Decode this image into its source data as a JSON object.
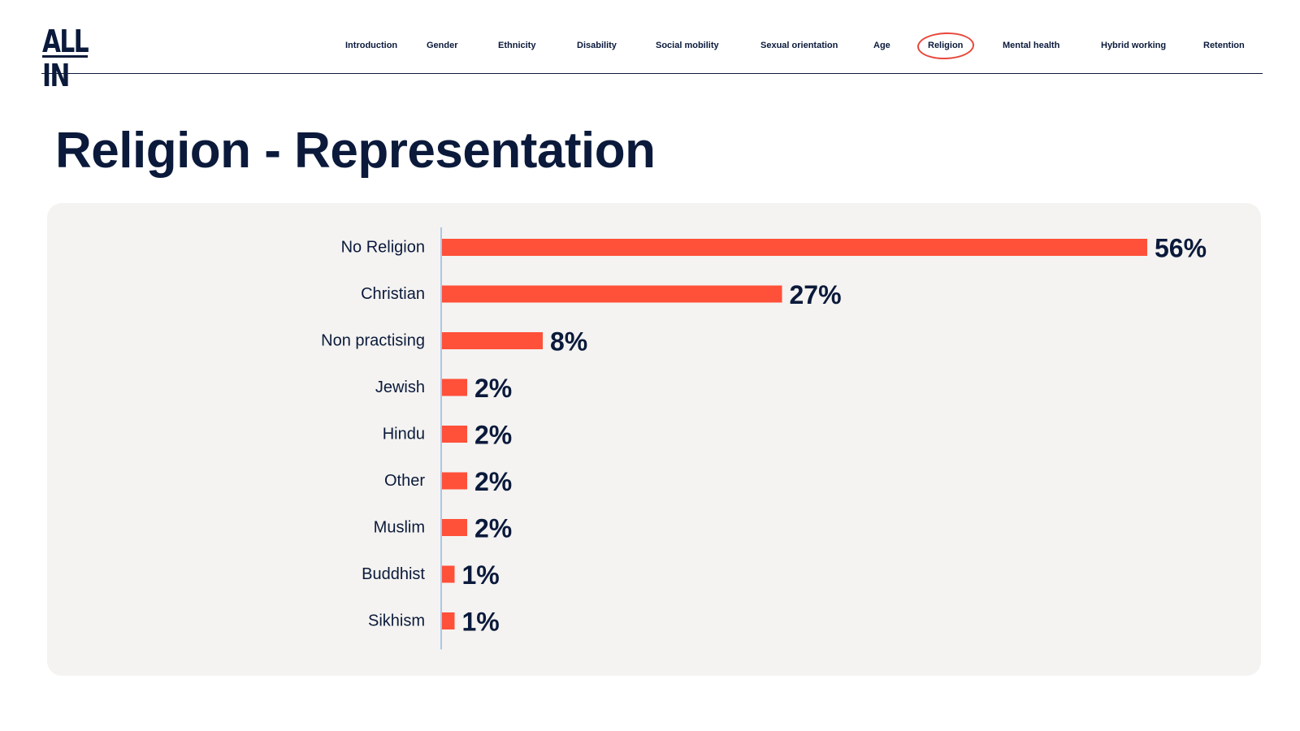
{
  "brand": {
    "logo_text": "ALL IN"
  },
  "nav": {
    "items": [
      {
        "label": "Introduction"
      },
      {
        "label": "Gender"
      },
      {
        "label": "Ethnicity"
      },
      {
        "label": "Disability"
      },
      {
        "label": "Social mobility"
      },
      {
        "label": "Sexual orientation"
      },
      {
        "label": "Age"
      },
      {
        "label": "Religion"
      },
      {
        "label": "Mental health"
      },
      {
        "label": "Hybrid working"
      },
      {
        "label": "Retention"
      }
    ],
    "active": "Religion",
    "highlight_color": "#e8463a"
  },
  "page": {
    "title": "Religion - Representation"
  },
  "colors": {
    "bar": "#ff5039",
    "text": "#0b1a3b",
    "panel": "#f4f3f1",
    "axis": "#a9c7e8"
  },
  "chart_data": {
    "type": "bar",
    "orientation": "horizontal",
    "categories": [
      "No Religion",
      "Christian",
      "Non practising",
      "Jewish",
      "Hindu",
      "Other",
      "Muslim",
      "Buddhist",
      "Sikhism"
    ],
    "values": [
      56,
      27,
      8,
      2,
      2,
      2,
      2,
      1,
      1
    ],
    "value_labels": [
      "56%",
      "27%",
      "8%",
      "2%",
      "2%",
      "2%",
      "2%",
      "1%",
      "1%"
    ],
    "unit": "%",
    "grid": false,
    "legend": "none"
  }
}
